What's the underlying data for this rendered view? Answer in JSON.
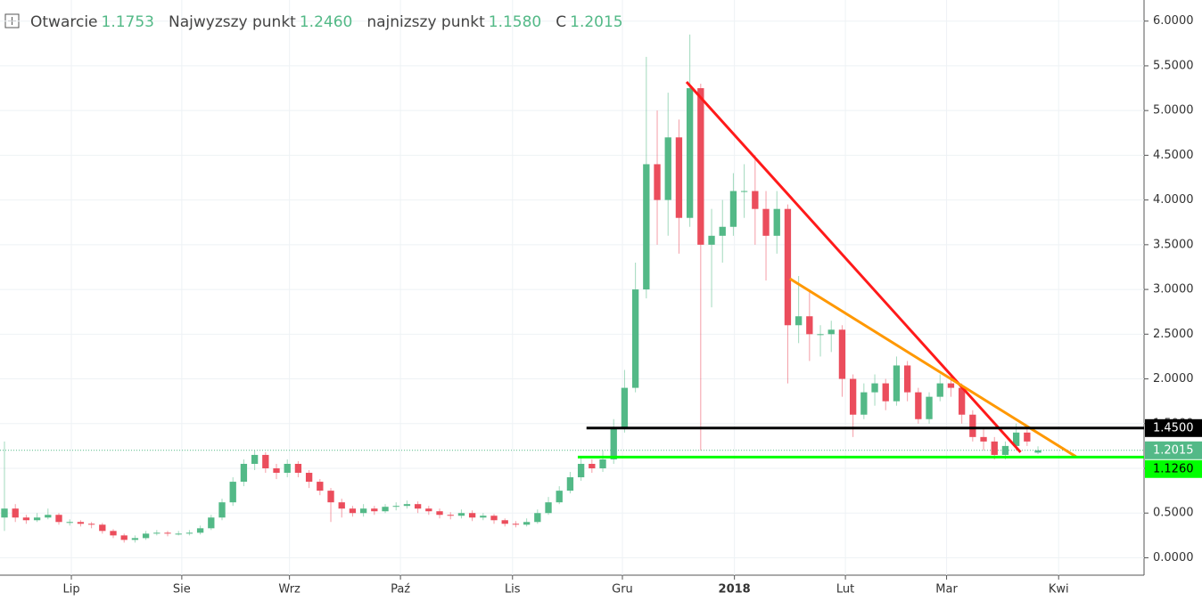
{
  "chart_data": {
    "type": "candlestick",
    "header": [
      {
        "label": "Otwarcie",
        "value": "1.1753"
      },
      {
        "label": "Najwyzszy punkt",
        "value": "1.2460"
      },
      {
        "label": "najnizszy punkt",
        "value": "1.1580"
      },
      {
        "label": "C",
        "value": "1.2015"
      }
    ],
    "up_color": "#53b987",
    "down_color": "#eb4d5c",
    "xlim": [
      -0.41,
      104.75
    ],
    "xticks": [
      {
        "value": 6.15,
        "label": "Lip"
      },
      {
        "value": 16.3,
        "label": "Sie"
      },
      {
        "value": 26.2,
        "label": "Wrz"
      },
      {
        "value": 36.4,
        "label": "Paź"
      },
      {
        "value": 46.7,
        "label": "Lis"
      },
      {
        "value": 56.8,
        "label": "Gru"
      },
      {
        "value": 67.1,
        "label": "2018"
      },
      {
        "value": 77.3,
        "label": "Lut"
      },
      {
        "value": 86.6,
        "label": "Mar"
      },
      {
        "value": 96.9,
        "label": "Kwi"
      }
    ],
    "ylim": [
      -0.1944,
      6.1364
    ],
    "yticks": [
      {
        "value": 0,
        "label": "0.0000"
      },
      {
        "value": 0.5,
        "label": "0.5000"
      },
      {
        "value": 1,
        "label": "1.0000"
      },
      {
        "value": 1.5,
        "label": "1.5000"
      },
      {
        "value": 2,
        "label": "2.0000"
      },
      {
        "value": 2.5,
        "label": "2.5000"
      },
      {
        "value": 3,
        "label": "3.0000"
      },
      {
        "value": 3.5,
        "label": "3.5000"
      },
      {
        "value": 4,
        "label": "4.0000"
      },
      {
        "value": 4.5,
        "label": "4.5000"
      },
      {
        "value": 5,
        "label": "5.0000"
      },
      {
        "value": 5.5,
        "label": "5.5000"
      },
      {
        "value": 6,
        "label": "6.0000"
      }
    ],
    "grid": true,
    "open": [
      0.45,
      0.55,
      0.45,
      0.42,
      0.45,
      0.48,
      0.4,
      0.4,
      0.38,
      0.37,
      0.3,
      0.25,
      0.2,
      0.22,
      0.27,
      0.28,
      0.27,
      0.27,
      0.28,
      0.33,
      0.45,
      0.62,
      0.85,
      1.05,
      1.15,
      1.0,
      0.95,
      1.05,
      0.95,
      0.85,
      0.75,
      0.62,
      0.55,
      0.5,
      0.55,
      0.52,
      0.57,
      0.58,
      0.6,
      0.55,
      0.52,
      0.48,
      0.47,
      0.5,
      0.45,
      0.47,
      0.42,
      0.38,
      0.37,
      0.4,
      0.5,
      0.62,
      0.75,
      0.9,
      1.05,
      1.0,
      1.1,
      1.45,
      1.9,
      3.0,
      4.4,
      4.0,
      4.7,
      3.8,
      5.25,
      3.5,
      3.6,
      3.7,
      4.1,
      4.1,
      3.9,
      3.6,
      3.9,
      2.6,
      2.7,
      2.5,
      2.5,
      2.55,
      2.0,
      1.6,
      1.85,
      1.95,
      1.75,
      2.15,
      1.85,
      1.55,
      1.8,
      1.95,
      1.9,
      1.6,
      1.35,
      1.3,
      1.15,
      1.25,
      1.4,
      1.1753
    ],
    "high": [
      1.3,
      0.6,
      0.48,
      0.5,
      0.55,
      0.5,
      0.43,
      0.42,
      0.4,
      0.39,
      0.32,
      0.27,
      0.25,
      0.3,
      0.31,
      0.3,
      0.3,
      0.31,
      0.36,
      0.48,
      0.66,
      0.9,
      1.1,
      1.2,
      1.18,
      1.05,
      1.1,
      1.08,
      0.98,
      0.88,
      0.78,
      0.66,
      0.58,
      0.6,
      0.58,
      0.6,
      0.62,
      0.64,
      0.63,
      0.58,
      0.55,
      0.51,
      0.54,
      0.53,
      0.5,
      0.49,
      0.44,
      0.41,
      0.44,
      0.54,
      0.68,
      0.8,
      0.96,
      1.12,
      1.1,
      1.2,
      1.55,
      2.1,
      3.3,
      5.6,
      5.0,
      5.2,
      4.9,
      5.85,
      5.3,
      3.9,
      4.0,
      4.3,
      4.4,
      4.5,
      4.1,
      4.1,
      3.95,
      3.15,
      3.0,
      2.6,
      2.65,
      2.6,
      2.05,
      1.95,
      2.05,
      2.0,
      2.25,
      2.2,
      1.9,
      1.85,
      2.05,
      2.05,
      1.95,
      1.65,
      1.45,
      1.35,
      1.3,
      1.5,
      1.45,
      1.246
    ],
    "low": [
      0.3,
      0.4,
      0.38,
      0.4,
      0.43,
      0.37,
      0.36,
      0.35,
      0.33,
      0.27,
      0.22,
      0.17,
      0.17,
      0.2,
      0.25,
      0.24,
      0.25,
      0.25,
      0.26,
      0.31,
      0.42,
      0.58,
      0.8,
      0.98,
      0.95,
      0.88,
      0.9,
      0.9,
      0.78,
      0.7,
      0.4,
      0.45,
      0.46,
      0.46,
      0.48,
      0.5,
      0.53,
      0.55,
      0.5,
      0.48,
      0.44,
      0.43,
      0.44,
      0.41,
      0.42,
      0.38,
      0.35,
      0.34,
      0.35,
      0.38,
      0.48,
      0.6,
      0.72,
      0.86,
      0.95,
      0.96,
      1.05,
      1.4,
      1.85,
      2.9,
      3.5,
      3.6,
      3.4,
      3.7,
      1.2,
      2.8,
      3.3,
      3.6,
      3.8,
      3.5,
      3.1,
      3.4,
      1.95,
      2.4,
      2.2,
      2.25,
      2.3,
      1.8,
      1.35,
      1.55,
      1.7,
      1.65,
      1.7,
      1.75,
      1.5,
      1.5,
      1.75,
      1.8,
      1.5,
      1.3,
      1.2,
      1.1,
      1.1,
      1.2,
      1.25,
      1.158
    ],
    "close": [
      0.55,
      0.45,
      0.42,
      0.45,
      0.48,
      0.4,
      0.4,
      0.38,
      0.37,
      0.3,
      0.25,
      0.2,
      0.22,
      0.27,
      0.28,
      0.27,
      0.27,
      0.28,
      0.33,
      0.45,
      0.62,
      0.85,
      1.05,
      1.15,
      1.0,
      0.95,
      1.05,
      0.95,
      0.85,
      0.75,
      0.62,
      0.55,
      0.5,
      0.55,
      0.52,
      0.57,
      0.58,
      0.6,
      0.55,
      0.52,
      0.48,
      0.47,
      0.5,
      0.45,
      0.47,
      0.42,
      0.38,
      0.37,
      0.4,
      0.5,
      0.62,
      0.75,
      0.9,
      1.05,
      1.0,
      1.1,
      1.45,
      1.9,
      3.0,
      4.4,
      4.0,
      4.7,
      3.8,
      5.25,
      3.5,
      3.6,
      3.7,
      4.1,
      4.1,
      3.9,
      3.6,
      3.9,
      2.6,
      2.7,
      2.5,
      2.5,
      2.55,
      2.0,
      1.6,
      1.85,
      1.95,
      1.75,
      2.15,
      1.85,
      1.55,
      1.8,
      1.95,
      1.9,
      1.6,
      1.35,
      1.3,
      1.15,
      1.25,
      1.4,
      1.3,
      1.2015
    ],
    "trendlines": [
      {
        "color": "#ff1a1a",
        "x": [
          62.7,
          93.4
        ],
        "y": [
          5.32,
          1.18
        ]
      },
      {
        "color": "#ff9800",
        "x": [
          72.2,
          98.5
        ],
        "y": [
          3.12,
          1.13
        ]
      },
      {
        "color": "#000000",
        "x": [
          53.5,
          104.75
        ],
        "y": [
          1.45,
          1.45
        ]
      },
      {
        "color": "#00ff00",
        "x": [
          52.7,
          104.75
        ],
        "y": [
          1.126,
          1.126
        ]
      }
    ],
    "price_labels": [
      {
        "value": 1.45,
        "label": "1.4500",
        "color": "#000000",
        "text_color": "#ffffff"
      },
      {
        "value": 1.2015,
        "label": "1.2015",
        "color": "#53b987",
        "text_color": "#ffffff"
      },
      {
        "value": 1.126,
        "label": "1.1260",
        "color": "#00ff00",
        "text_color": "#000000"
      }
    ]
  }
}
